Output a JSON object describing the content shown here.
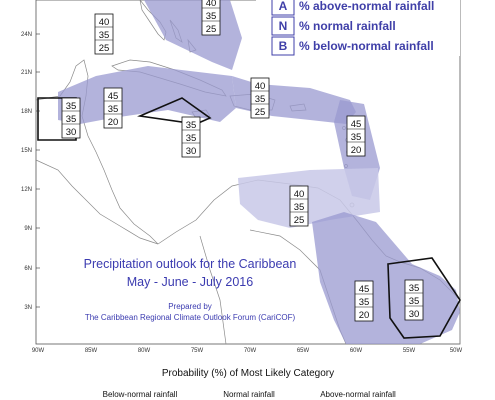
{
  "legend": {
    "items": [
      {
        "letter": "A",
        "label": "% above-normal rainfall"
      },
      {
        "letter": "N",
        "label": "% normal rainfall"
      },
      {
        "letter": "B",
        "label": "% below-normal rainfall"
      }
    ]
  },
  "map": {
    "title_line1": "Precipitation outlook for the Caribbean",
    "title_line2": "May - June - July 2016",
    "credit_line1": "Prepared by",
    "credit_line2": "The Caribbean Regional Climate Outlook Forum (CariCOF)",
    "lat_ticks": [
      "24N",
      "21N",
      "18N",
      "15N",
      "12N",
      "9N",
      "6N",
      "3N"
    ],
    "lon_ticks": [
      "90W",
      "85W",
      "80W",
      "75W",
      "70W",
      "65W",
      "60W",
      "55W",
      "50W"
    ],
    "colors": {
      "above_normal_shade": "#9a9ad0",
      "normal_shade": "#c8c8e8",
      "legend_text": "#3f3fa8"
    }
  },
  "forecast_boxes": [
    {
      "region": "bahamas",
      "values": [
        "40",
        "35",
        "25"
      ]
    },
    {
      "region": "north-caribbean",
      "values": [
        "40",
        "35",
        "25"
      ]
    },
    {
      "region": "belize",
      "values": [
        "35",
        "35",
        "30"
      ]
    },
    {
      "region": "jamaica-cayman",
      "values": [
        "45",
        "35",
        "20"
      ]
    },
    {
      "region": "honduras-nicaragua",
      "values": [
        "35",
        "35",
        "30"
      ]
    },
    {
      "region": "hispaniola-puerto-rico",
      "values": [
        "40",
        "35",
        "25"
      ]
    },
    {
      "region": "leeward-windward",
      "values": [
        "45",
        "35",
        "20"
      ]
    },
    {
      "region": "abc-islands",
      "values": [
        "40",
        "35",
        "25"
      ]
    },
    {
      "region": "guyana",
      "values": [
        "45",
        "35",
        "20"
      ]
    },
    {
      "region": "french-guiana",
      "values": [
        "35",
        "35",
        "30"
      ]
    }
  ],
  "probability_section": {
    "heading": "Probability (%) of Most Likely Category",
    "categories": [
      "Below-normal rainfall",
      "Normal rainfall",
      "Above-normal rainfall"
    ]
  }
}
